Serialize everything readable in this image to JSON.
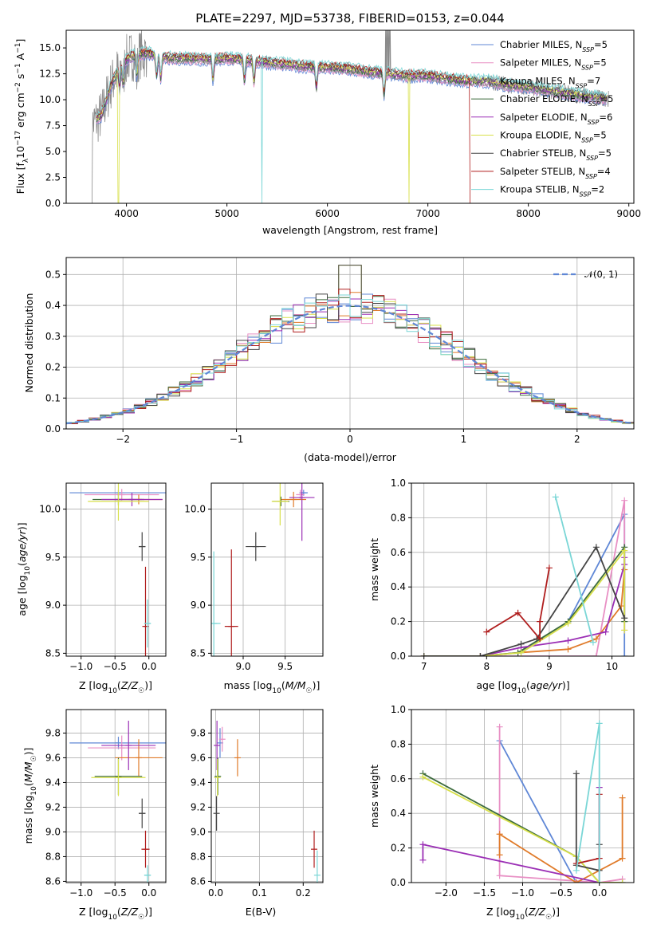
{
  "chart_data": [
    {
      "type": "line",
      "title": "PLATE=2297, MJD=53738, FIBERID=0153, z=0.044",
      "xlabel": "wavelength [Angstrom, rest frame]",
      "ylabel_parts": [
        "Flux [f",
        "λ",
        "10",
        "−17",
        " erg cm",
        "−2",
        " s",
        "−1",
        " A",
        "−1",
        "]"
      ],
      "xlim": [
        3400,
        9050
      ],
      "ylim": [
        0,
        16.7
      ],
      "xticks": [
        4000,
        5000,
        6000,
        7000,
        8000,
        9000
      ],
      "yticks": [
        0.0,
        2.5,
        5.0,
        7.5,
        10.0,
        12.5,
        15.0
      ],
      "legend_position": "upper right",
      "series": [
        {
          "name": "Chabrier MILES",
          "nssp": "5",
          "color": "#5f87d6"
        },
        {
          "name": "Salpeter MILES",
          "nssp": "5",
          "color": "#e88fc4"
        },
        {
          "name": "Kroupa MILES",
          "nssp": "7",
          "color": "#8b8b8b"
        },
        {
          "name": "Chabrier ELODIE",
          "nssp": "5",
          "color": "#3d6b3d"
        },
        {
          "name": "Salpeter ELODIE",
          "nssp": "6",
          "color": "#9b2fb5"
        },
        {
          "name": "Kroupa ELODIE",
          "nssp": "5",
          "color": "#d8e04a"
        },
        {
          "name": "Chabrier STELIB",
          "nssp": "5",
          "color": "#444444"
        },
        {
          "name": "Salpeter STELIB",
          "nssp": "4",
          "color": "#b01e1e"
        },
        {
          "name": "Kroupa STELIB",
          "nssp": "2",
          "color": "#7ad6d6"
        }
      ],
      "continuum": {
        "x": [
          3650,
          3750,
          3850,
          3950,
          4050,
          4200,
          4400,
          4600,
          4800,
          5000,
          5200,
          5400,
          5600,
          5800,
          6000,
          6200,
          6400,
          6600,
          6800,
          7000,
          7200,
          7400,
          7600,
          7800,
          8000,
          8200,
          8400,
          8600,
          8800
        ],
        "y": [
          7.5,
          8.5,
          11.5,
          13.5,
          14.2,
          14.5,
          14.0,
          14.0,
          13.9,
          14.0,
          13.8,
          13.6,
          13.4,
          13.2,
          13.1,
          13.0,
          12.7,
          12.5,
          12.3,
          12.3,
          12.0,
          11.8,
          11.8,
          11.4,
          11.2,
          10.9,
          10.6,
          10.3,
          10.1
        ]
      },
      "model_cutoffs": [
        {
          "series": "Kroupa ELODIE",
          "x": 3920
        },
        {
          "series": "Kroupa STELIB",
          "x": 5350
        },
        {
          "series": "Kroupa ELODIE",
          "x": 6810
        },
        {
          "series": "Salpeter STELIB",
          "x": 7420
        }
      ]
    },
    {
      "type": "histogram",
      "xlabel": "(data-model)/error",
      "ylabel": "Normed distribution",
      "xlim": [
        -2.5,
        2.5
      ],
      "ylim": [
        0,
        0.555
      ],
      "xticks": [
        -2,
        -1,
        0,
        1,
        2
      ],
      "yticks": [
        0.0,
        0.1,
        0.2,
        0.3,
        0.4,
        0.5
      ],
      "bin_width": 0.1,
      "reference_curve": {
        "label": "N(0,1)",
        "label_tex": "𝒩(0, 1)",
        "color": "#5f87d6",
        "style": "dashed"
      },
      "legend_position": "upper right",
      "series_colors": [
        "#5f87d6",
        "#e88fc4",
        "#e07b2a",
        "#3d6b3d",
        "#9b2fb5",
        "#d8e04a",
        "#444444",
        "#b01e1e",
        "#7ad6d6"
      ]
    },
    {
      "type": "scatter_errorbar",
      "xlabel": "Z [log10(Z/Z☉)]",
      "ylabel": "age [log10(age/yr)]",
      "xlim": [
        -1.22,
        0.25
      ],
      "ylim": [
        8.47,
        10.27
      ],
      "xticks": [
        -1.0,
        -0.5,
        0.0
      ],
      "yticks": [
        8.5,
        9.0,
        9.5,
        10.0
      ],
      "points": [
        {
          "x": -0.45,
          "y": 10.17,
          "xerr": 0.72,
          "yerr": 0.03,
          "color": "#5f87d6"
        },
        {
          "x": -0.4,
          "y": 10.15,
          "xerr": 0.55,
          "yerr": 0.06,
          "color": "#e88fc4"
        },
        {
          "x": -0.15,
          "y": 10.1,
          "xerr": 0.35,
          "yerr": 0.05,
          "color": "#e07b2a"
        },
        {
          "x": -0.45,
          "y": 10.1,
          "xerr": 0.38,
          "yerr": 0.06,
          "color": "#3d6b3d"
        },
        {
          "x": -0.25,
          "y": 10.1,
          "xerr": 0.45,
          "yerr": 0.07,
          "color": "#9b2fb5"
        },
        {
          "x": -0.45,
          "y": 10.08,
          "xerr": 0.45,
          "yerr": 0.2,
          "color": "#d8e04a"
        },
        {
          "x": -0.1,
          "y": 9.61,
          "xerr": 0.05,
          "yerr": 0.15,
          "color": "#444444"
        },
        {
          "x": -0.05,
          "y": 8.78,
          "xerr": 0.02,
          "yerr": 0.62,
          "color": "#b01e1e"
        },
        {
          "x": -0.02,
          "y": 8.81,
          "xerr": 0.05,
          "yerr": 0.25,
          "color": "#7ad6d6"
        }
      ]
    },
    {
      "type": "scatter_errorbar",
      "xlabel": "mass [log10(M/M☉)]",
      "ylabel": "",
      "xlim": [
        8.62,
        9.95
      ],
      "ylim": [
        8.47,
        10.27
      ],
      "xticks": [
        9.0,
        9.5
      ],
      "yticks": [
        8.5,
        9.0,
        9.5,
        10.0
      ],
      "points": [
        {
          "x": 9.72,
          "y": 10.17,
          "xerr": 0.05,
          "yerr": 0.03,
          "color": "#5f87d6"
        },
        {
          "x": 9.68,
          "y": 10.15,
          "xerr": 0.05,
          "yerr": 0.05,
          "color": "#e88fc4"
        },
        {
          "x": 9.6,
          "y": 10.1,
          "xerr": 0.15,
          "yerr": 0.08,
          "color": "#e07b2a"
        },
        {
          "x": 9.45,
          "y": 10.08,
          "xerr": 0.1,
          "yerr": 0.05,
          "color": "#3d6b3d"
        },
        {
          "x": 9.7,
          "y": 10.12,
          "xerr": 0.15,
          "yerr": 0.45,
          "color": "#9b2fb5"
        },
        {
          "x": 9.44,
          "y": 10.08,
          "xerr": 0.1,
          "yerr": 0.25,
          "color": "#d8e04a"
        },
        {
          "x": 9.15,
          "y": 9.61,
          "xerr": 0.12,
          "yerr": 0.15,
          "color": "#444444"
        },
        {
          "x": 8.86,
          "y": 8.78,
          "xerr": 0.08,
          "yerr": 0.8,
          "color": "#b01e1e"
        },
        {
          "x": 8.65,
          "y": 8.81,
          "xerr": 0.08,
          "yerr": 0.75,
          "color": "#7ad6d6"
        }
      ]
    },
    {
      "type": "line_marker",
      "xlabel": "age [log10(age/yr)]",
      "ylabel": "mass weight",
      "xlim": [
        6.8,
        10.35
      ],
      "ylim": [
        0,
        1.0
      ],
      "xticks": [
        7,
        8,
        9,
        10
      ],
      "yticks": [
        0.0,
        0.2,
        0.4,
        0.6,
        0.8,
        1.0
      ],
      "series": [
        {
          "color": "#5f87d6",
          "x": [
            7.0,
            7.9,
            8.55,
            9.3,
            10.2,
            10.2
          ],
          "y": [
            0.0,
            0.0,
            0.02,
            0.2,
            0.82,
            0.0
          ]
        },
        {
          "color": "#e88fc4",
          "x": [
            7.0,
            7.9,
            9.75,
            10.2,
            10.2
          ],
          "y": [
            0.0,
            0.0,
            0.0,
            0.9,
            0.15
          ]
        },
        {
          "color": "#e07b2a",
          "x": [
            7.0,
            7.9,
            8.5,
            9.3,
            9.75,
            10.15,
            10.2
          ],
          "y": [
            0.0,
            0.0,
            0.02,
            0.04,
            0.1,
            0.29,
            0.5
          ]
        },
        {
          "color": "#3d6b3d",
          "x": [
            7.0,
            7.9,
            8.5,
            9.3,
            10.2,
            10.2
          ],
          "y": [
            0.0,
            0.0,
            0.02,
            0.2,
            0.63,
            0.2
          ]
        },
        {
          "color": "#9b2fb5",
          "x": [
            7.0,
            7.9,
            8.55,
            9.3,
            9.9,
            10.2,
            10.2
          ],
          "y": [
            0.0,
            0.0,
            0.05,
            0.09,
            0.14,
            0.53,
            0.57
          ]
        },
        {
          "color": "#d8e04a",
          "x": [
            7.0,
            7.9,
            8.55,
            9.3,
            10.2,
            10.2
          ],
          "y": [
            0.0,
            0.0,
            0.02,
            0.19,
            0.61,
            0.15
          ]
        },
        {
          "color": "#444444",
          "x": [
            7.0,
            7.9,
            8.55,
            8.8,
            9.75,
            10.2
          ],
          "y": [
            0.0,
            0.0,
            0.07,
            0.1,
            0.63,
            0.22
          ]
        },
        {
          "color": "#b01e1e",
          "x": [
            8.0,
            8.5,
            8.85,
            8.85,
            9.0
          ],
          "y": [
            0.14,
            0.25,
            0.1,
            0.2,
            0.51
          ]
        },
        {
          "color": "#7ad6d6",
          "x": [
            9.1,
            9.7
          ],
          "y": [
            0.92,
            0.08
          ]
        }
      ]
    },
    {
      "type": "scatter_errorbar",
      "xlabel": "Z [log10(Z/Z☉)]",
      "ylabel": "mass [log10(M/M☉)]",
      "xlim": [
        -1.22,
        0.25
      ],
      "ylim": [
        8.59,
        9.99
      ],
      "xticks": [
        -1.0,
        -0.5,
        0.0
      ],
      "yticks": [
        8.6,
        8.8,
        9.0,
        9.2,
        9.4,
        9.6,
        9.8
      ],
      "points": [
        {
          "x": -0.45,
          "y": 9.72,
          "xerr": 0.72,
          "yerr": 0.05,
          "color": "#5f87d6"
        },
        {
          "x": -0.4,
          "y": 9.68,
          "xerr": 0.5,
          "yerr": 0.1,
          "color": "#e88fc4"
        },
        {
          "x": -0.15,
          "y": 9.6,
          "xerr": 0.35,
          "yerr": 0.15,
          "color": "#e07b2a"
        },
        {
          "x": -0.45,
          "y": 9.45,
          "xerr": 0.35,
          "yerr": 0.15,
          "color": "#3d6b3d"
        },
        {
          "x": -0.3,
          "y": 9.7,
          "xerr": 0.4,
          "yerr": 0.2,
          "color": "#9b2fb5"
        },
        {
          "x": -0.45,
          "y": 9.44,
          "xerr": 0.4,
          "yerr": 0.15,
          "color": "#d8e04a"
        },
        {
          "x": -0.1,
          "y": 9.15,
          "xerr": 0.05,
          "yerr": 0.12,
          "color": "#444444"
        },
        {
          "x": -0.05,
          "y": 8.86,
          "xerr": 0.06,
          "yerr": 0.15,
          "color": "#b01e1e"
        },
        {
          "x": -0.02,
          "y": 8.65,
          "xerr": 0.05,
          "yerr": 0.08,
          "color": "#7ad6d6"
        }
      ]
    },
    {
      "type": "scatter_errorbar",
      "xlabel": "E(B-V)",
      "ylabel": "",
      "xlim": [
        -0.01,
        0.245
      ],
      "ylim": [
        8.59,
        9.99
      ],
      "xticks": [
        0.0,
        0.1,
        0.2
      ],
      "yticks": [
        8.6,
        8.8,
        9.0,
        9.2,
        9.4,
        9.6,
        9.8
      ],
      "points": [
        {
          "x": 0.01,
          "y": 9.72,
          "xerr": 0,
          "yerr": 0.12,
          "color": "#5f87d6"
        },
        {
          "x": 0.015,
          "y": 9.75,
          "xerr": 0,
          "yerr": 0.1,
          "color": "#e88fc4"
        },
        {
          "x": 0.05,
          "y": 9.6,
          "xerr": 0,
          "yerr": 0.15,
          "color": "#e07b2a"
        },
        {
          "x": 0.005,
          "y": 9.45,
          "xerr": 0,
          "yerr": 0.15,
          "color": "#3d6b3d"
        },
        {
          "x": 0.003,
          "y": 9.7,
          "xerr": 0,
          "yerr": 0.2,
          "color": "#9b2fb5"
        },
        {
          "x": 0.004,
          "y": 9.44,
          "xerr": 0,
          "yerr": 0.15,
          "color": "#d8e04a"
        },
        {
          "x": 0.002,
          "y": 9.15,
          "xerr": 0,
          "yerr": 0.14,
          "color": "#444444"
        },
        {
          "x": 0.225,
          "y": 8.86,
          "xerr": 0,
          "yerr": 0.15,
          "color": "#b01e1e"
        },
        {
          "x": 0.232,
          "y": 8.65,
          "xerr": 0,
          "yerr": 0.2,
          "color": "#7ad6d6"
        }
      ]
    },
    {
      "type": "line_marker",
      "xlabel": "Z [log10(Z/Z☉)]",
      "ylabel": "mass weight",
      "xlim": [
        -2.45,
        0.45
      ],
      "ylim": [
        0,
        1.0
      ],
      "xticks": [
        -2.0,
        -1.5,
        -1.0,
        -0.5,
        0.0
      ],
      "yticks": [
        0.0,
        0.2,
        0.4,
        0.6,
        0.8,
        1.0
      ],
      "series": [
        {
          "color": "#5f87d6",
          "x": [
            -1.3,
            -0.3,
            0.0
          ],
          "y": [
            0.82,
            0.0,
            0.0
          ]
        },
        {
          "color": "#e88fc4",
          "x": [
            -1.3,
            -1.3,
            0.0,
            0.3
          ],
          "y": [
            0.9,
            0.04,
            0.0,
            0.02
          ]
        },
        {
          "color": "#e07b2a",
          "x": [
            -1.3,
            -1.3,
            -0.3,
            0.3,
            0.3
          ],
          "y": [
            0.16,
            0.28,
            0.0,
            0.14,
            0.49
          ]
        },
        {
          "color": "#3d6b3d",
          "x": [
            -2.3,
            -0.3,
            0.0,
            0.3
          ],
          "y": [
            0.63,
            0.15,
            0.0,
            0.0
          ]
        },
        {
          "color": "#9b2fb5",
          "x": [
            -2.3,
            -2.3,
            0.0,
            0.0
          ],
          "y": [
            0.13,
            0.22,
            0.0,
            0.55
          ]
        },
        {
          "color": "#d8e04a",
          "x": [
            -2.3,
            -0.3,
            0.0,
            0.3
          ],
          "y": [
            0.61,
            0.15,
            0.0,
            0.0
          ]
        },
        {
          "color": "#444444",
          "x": [
            -0.3,
            -0.3,
            0.0,
            0.0
          ],
          "y": [
            0.63,
            0.1,
            0.07,
            0.22
          ]
        },
        {
          "color": "#b01e1e",
          "x": [
            -0.3,
            0.0,
            0.0
          ],
          "y": [
            0.11,
            0.14,
            0.51
          ]
        },
        {
          "color": "#7ad6d6",
          "x": [
            -0.3,
            0.0,
            0.0
          ],
          "y": [
            0.07,
            0.92,
            0.0
          ]
        }
      ]
    }
  ]
}
